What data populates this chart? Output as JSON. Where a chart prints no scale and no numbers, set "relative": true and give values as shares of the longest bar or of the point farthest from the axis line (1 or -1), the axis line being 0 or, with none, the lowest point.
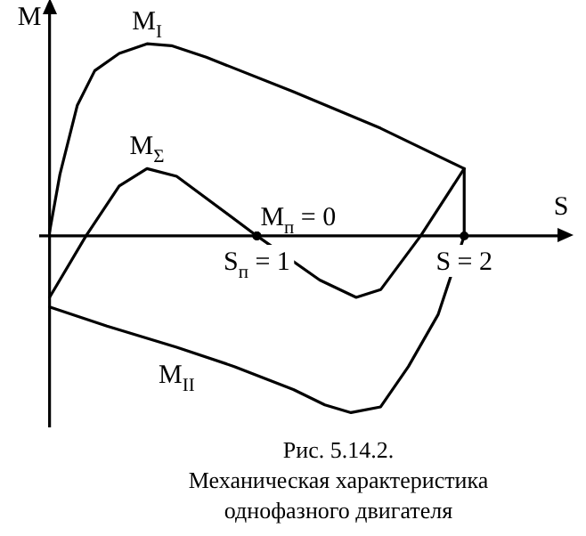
{
  "chart_data": {
    "type": "line",
    "title": "Рис. 5.14.2.",
    "subtitle": "Механическая характеристика однофазного двигателя",
    "xlabel": "S",
    "ylabel": "M",
    "relative": true,
    "xlim": [
      -0.05,
      2.45
    ],
    "xticks": [
      {
        "value": 1,
        "label": "S$_{п}$ = 1"
      },
      {
        "value": 2,
        "label": "S = 2"
      }
    ],
    "tick_labels": "x",
    "legend": false,
    "marker": "none",
    "line_style": "solid",
    "series": [
      {
        "name": "M$_{I}$",
        "color": "#000000",
        "x": [
          0,
          0.05,
          0.134,
          0.218,
          0.336,
          0.47,
          0.588,
          0.756,
          1.176,
          1.597,
          2,
          2
        ],
        "values": [
          0.02,
          0.32,
          0.68,
          0.86,
          0.95,
          1,
          0.99,
          0.93,
          0.75,
          0.56,
          0.35,
          0
        ]
      },
      {
        "name": "M$_{Σ}$",
        "color": "#000000",
        "x": [
          0,
          0.176,
          0.336,
          0.47,
          0.613,
          1,
          1.303,
          1.479,
          1.597,
          1.79,
          2
        ],
        "values": [
          -0.32,
          0,
          0.26,
          0.35,
          0.31,
          0,
          -0.23,
          -0.32,
          -0.28,
          0,
          0.35
        ]
      },
      {
        "name": "M$_{II}$",
        "color": "#000000",
        "x": [
          0,
          0.277,
          0.613,
          0.891,
          1.176,
          1.328,
          1.454,
          1.597,
          1.731,
          1.874,
          2
        ],
        "values": [
          -0.37,
          -0.47,
          -0.58,
          -0.68,
          -0.8,
          -0.88,
          -0.92,
          -0.89,
          -0.68,
          -0.41,
          0
        ]
      }
    ],
    "annotations": [
      {
        "text": "M$_{п}$ = 0",
        "x": 1,
        "y": 0
      }
    ]
  }
}
